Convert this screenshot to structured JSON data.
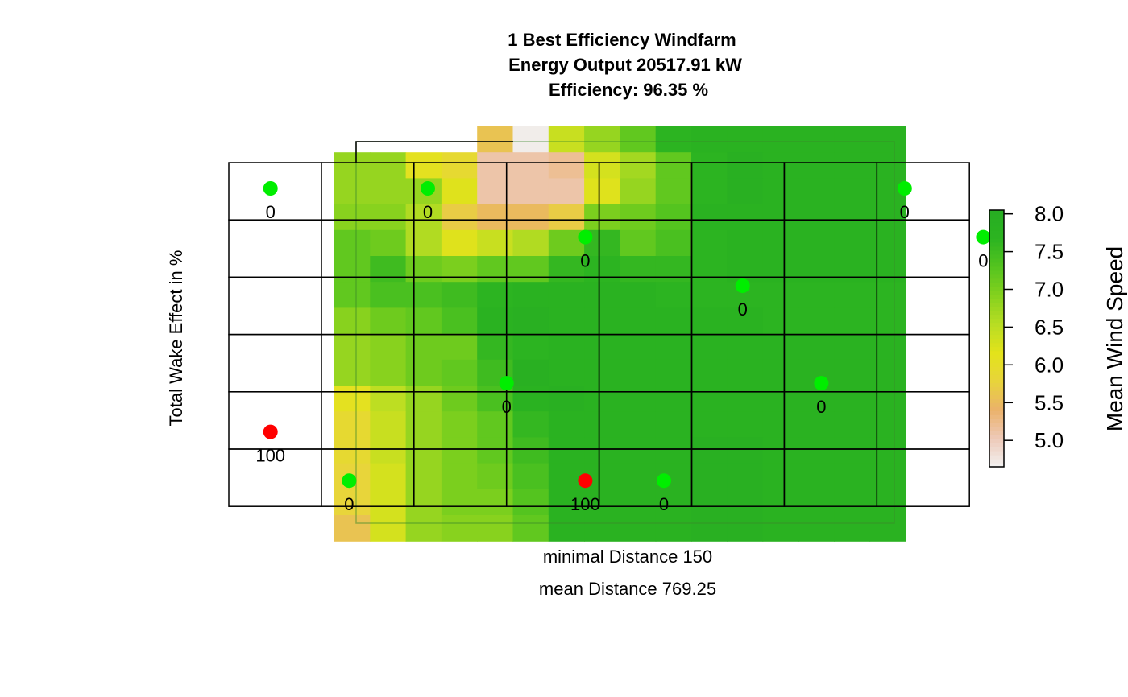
{
  "chart_data": {
    "type": "heatmap",
    "title": [
      "1 Best Efficiency Windfarm",
      "Energy Output 20517.91 kW",
      "Efficiency: 96.35 %"
    ],
    "xlabel": [
      "minimal Distance 150",
      "mean Distance 769.25"
    ],
    "ylabel": "Total Wake Effect in %",
    "colorbar": {
      "title": "Mean Wind Speed",
      "ticks": [
        5.0,
        5.5,
        6.0,
        6.5,
        7.0,
        7.5,
        8.0
      ],
      "range": [
        4.65,
        8.05
      ],
      "colors": [
        "#f2f2f2",
        "#eec9b8",
        "#ebb26a",
        "#e8d43b",
        "#e3e31b",
        "#b9dd23",
        "#86d21e",
        "#55c41f",
        "#2cb421",
        "#27ae22"
      ]
    },
    "wind_speed_grid": [
      [
        null,
        null,
        null,
        null,
        5.6,
        4.7,
        6.4,
        6.8,
        7.2,
        7.7,
        7.8,
        7.8,
        7.8,
        7.8,
        7.8,
        7.8
      ],
      [
        6.8,
        6.8,
        6.1,
        5.9,
        5.1,
        5.1,
        5.2,
        6.3,
        6.7,
        7.2,
        7.7,
        7.9,
        7.8,
        7.8,
        7.8,
        7.8
      ],
      [
        6.8,
        6.8,
        6.8,
        6.2,
        5.1,
        5.1,
        5.1,
        6.2,
        6.8,
        7.2,
        7.7,
        7.9,
        7.8,
        7.8,
        7.8,
        7.8
      ],
      [
        6.9,
        6.9,
        6.6,
        5.7,
        5.5,
        5.5,
        5.7,
        7.0,
        7.1,
        7.3,
        7.8,
        7.8,
        7.8,
        7.8,
        7.8,
        7.8
      ],
      [
        7.2,
        7.1,
        6.6,
        6.2,
        6.4,
        6.6,
        7.1,
        7.6,
        7.2,
        7.4,
        7.7,
        7.8,
        7.8,
        7.8,
        7.8,
        7.8
      ],
      [
        7.2,
        7.5,
        7.1,
        7.0,
        7.2,
        7.2,
        7.6,
        7.7,
        7.6,
        7.6,
        7.7,
        7.8,
        7.8,
        7.8,
        7.8,
        7.8
      ],
      [
        7.2,
        7.4,
        7.4,
        7.5,
        7.7,
        7.8,
        7.8,
        7.8,
        7.8,
        7.7,
        7.7,
        7.7,
        7.7,
        7.7,
        7.7,
        7.7
      ],
      [
        6.9,
        7.1,
        7.2,
        7.4,
        7.8,
        7.9,
        7.8,
        7.8,
        7.8,
        7.8,
        7.8,
        7.8,
        7.7,
        7.7,
        7.7,
        7.7
      ],
      [
        6.8,
        6.9,
        7.1,
        7.1,
        7.6,
        7.7,
        7.8,
        7.8,
        7.8,
        7.8,
        7.8,
        7.8,
        7.8,
        7.8,
        7.8,
        7.8
      ],
      [
        6.8,
        6.9,
        7.1,
        7.2,
        7.5,
        7.9,
        7.8,
        7.8,
        7.8,
        7.8,
        7.8,
        7.8,
        7.8,
        7.8,
        7.8,
        7.8
      ],
      [
        6.1,
        6.5,
        6.8,
        7.1,
        7.4,
        7.8,
        7.9,
        7.8,
        7.8,
        7.8,
        7.8,
        7.8,
        7.8,
        7.8,
        7.8,
        7.8
      ],
      [
        5.9,
        6.4,
        6.8,
        7.0,
        7.2,
        7.6,
        7.8,
        7.8,
        7.8,
        7.8,
        7.8,
        7.8,
        7.8,
        7.8,
        7.8,
        7.8
      ],
      [
        5.9,
        6.4,
        6.8,
        7.0,
        7.2,
        7.5,
        7.8,
        7.8,
        7.8,
        7.8,
        7.9,
        7.9,
        7.8,
        7.8,
        7.8,
        7.8
      ],
      [
        5.8,
        6.3,
        6.8,
        7.0,
        7.1,
        7.4,
        7.8,
        7.8,
        7.8,
        7.8,
        7.9,
        7.9,
        7.8,
        7.8,
        7.8,
        7.8
      ],
      [
        5.8,
        6.3,
        6.8,
        7.0,
        7.0,
        7.3,
        7.8,
        7.8,
        7.8,
        7.8,
        7.9,
        7.9,
        7.8,
        7.8,
        7.8,
        7.8
      ],
      [
        5.6,
        6.3,
        6.8,
        6.9,
        6.9,
        7.2,
        7.8,
        7.8,
        7.8,
        7.8,
        7.9,
        7.9,
        7.8,
        7.8,
        7.8,
        7.8
      ]
    ],
    "turbine_grid": {
      "columns": 8,
      "rows": 6
    },
    "turbines": [
      {
        "col": 0.45,
        "row": 0.45,
        "wake": "0"
      },
      {
        "col": 2.15,
        "row": 0.45,
        "wake": "0"
      },
      {
        "col": 7.3,
        "row": 0.45,
        "wake": "0"
      },
      {
        "col": 3.85,
        "row": 1.3,
        "wake": "0"
      },
      {
        "col": 8.15,
        "row": 1.3,
        "wake": "0"
      },
      {
        "col": 5.55,
        "row": 2.15,
        "wake": "0"
      },
      {
        "col": 3.0,
        "row": 3.85,
        "wake": "0"
      },
      {
        "col": 6.4,
        "row": 3.85,
        "wake": "0"
      },
      {
        "col": 0.45,
        "row": 4.7,
        "wake": "100"
      },
      {
        "col": 1.3,
        "row": 5.55,
        "wake": "0"
      },
      {
        "col": 3.85,
        "row": 5.55,
        "wake": "100"
      },
      {
        "col": 4.7,
        "row": 5.55,
        "wake": "0"
      }
    ],
    "status_colors": {
      "low_wake": "#00ee00",
      "high_wake": "#ff0000"
    }
  }
}
